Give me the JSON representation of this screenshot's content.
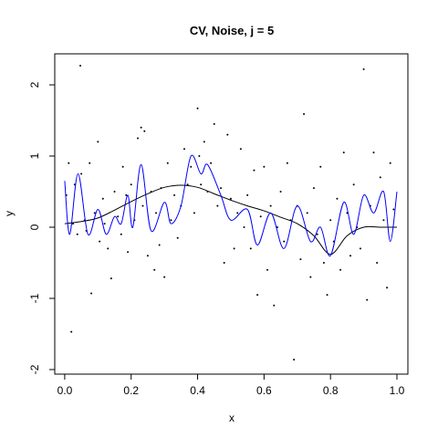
{
  "chart_data": {
    "type": "scatter",
    "title": "CV, Noise, j = 5",
    "xlabel": "x",
    "ylabel": "y",
    "xlim": [
      -0.03,
      1.033
    ],
    "ylim": [
      -2.064,
      2.436
    ],
    "xticks": [
      {
        "value": 0,
        "label": "0.0"
      },
      {
        "value": 0.2,
        "label": "0.2"
      },
      {
        "value": 0.4,
        "label": "0.4"
      },
      {
        "value": 0.6,
        "label": "0.6"
      },
      {
        "value": 0.8,
        "label": "0.8"
      },
      {
        "value": 1,
        "label": "1.0"
      }
    ],
    "yticks": [
      -2,
      -1,
      0,
      1,
      2
    ],
    "points": {
      "color": "#000000",
      "x": [
        0.005,
        0.012,
        0.02,
        0.025,
        0.03,
        0.038,
        0.047,
        0.05,
        0.06,
        0.065,
        0.075,
        0.08,
        0.09,
        0.1,
        0.105,
        0.115,
        0.12,
        0.13,
        0.14,
        0.15,
        0.16,
        0.17,
        0.175,
        0.185,
        0.19,
        0.2,
        0.21,
        0.22,
        0.23,
        0.235,
        0.24,
        0.25,
        0.26,
        0.27,
        0.275,
        0.285,
        0.29,
        0.3,
        0.31,
        0.32,
        0.33,
        0.34,
        0.35,
        0.36,
        0.37,
        0.38,
        0.39,
        0.4,
        0.405,
        0.41,
        0.42,
        0.43,
        0.44,
        0.45,
        0.46,
        0.47,
        0.48,
        0.49,
        0.5,
        0.51,
        0.52,
        0.53,
        0.54,
        0.55,
        0.56,
        0.57,
        0.58,
        0.59,
        0.6,
        0.61,
        0.62,
        0.63,
        0.64,
        0.65,
        0.66,
        0.67,
        0.68,
        0.69,
        0.7,
        0.71,
        0.72,
        0.73,
        0.74,
        0.75,
        0.76,
        0.77,
        0.78,
        0.79,
        0.8,
        0.81,
        0.82,
        0.83,
        0.84,
        0.85,
        0.86,
        0.87,
        0.88,
        0.89,
        0.9,
        0.91,
        0.92,
        0.93,
        0.94,
        0.95,
        0.96,
        0.97,
        0.98,
        0.99
      ],
      "y": [
        0.45,
        0.9,
        -1.47,
        0.05,
        0.6,
        -0.1,
        2.27,
        0.75,
        0.1,
        -0.05,
        0.9,
        -0.93,
        0.2,
        1.2,
        -0.2,
        0.4,
        0.05,
        -0.3,
        -0.72,
        0.5,
        0.15,
        -0.1,
        0.85,
        0.45,
        -0.35,
        0.6,
        0.1,
        1.25,
        1.4,
        0.3,
        1.35,
        -0.4,
        0.5,
        -0.6,
        0.2,
        -0.25,
        0.55,
        -0.7,
        0.9,
        0.1,
        0.45,
        -0.15,
        0.3,
        1.1,
        0.6,
        0.85,
        0.2,
        1.67,
        1.0,
        0.6,
        1.2,
        0.5,
        0.9,
        1.45,
        0.3,
        0.55,
        -0.5,
        1.3,
        0.4,
        -0.3,
        0.2,
        1.1,
        0.0,
        0.45,
        -0.3,
        0.8,
        -0.95,
        0.15,
        0.85,
        -0.6,
        0.3,
        -1.1,
        0.0,
        0.5,
        -0.2,
        0.9,
        0.1,
        -1.86,
        0.3,
        -0.45,
        1.59,
        0.2,
        -0.7,
        0.55,
        -0.1,
        0.85,
        -0.5,
        -0.95,
        0.1,
        -0.2,
        0.4,
        -0.6,
        1.05,
        0.2,
        -0.4,
        0.6,
        0.0,
        -0.3,
        2.22,
        -1.02,
        0.3,
        1.05,
        -0.5,
        0.7,
        0.1,
        -0.85,
        0.9,
        0.25
      ]
    },
    "lines": [
      {
        "color": "#000000",
        "x": [
          0,
          0.05,
          0.1,
          0.15,
          0.2,
          0.25,
          0.3,
          0.35,
          0.4,
          0.45,
          0.5,
          0.55,
          0.6,
          0.65,
          0.7,
          0.75,
          0.8,
          0.85,
          0.9,
          0.95,
          1
        ],
        "y": [
          0.05,
          0.08,
          0.13,
          0.24,
          0.36,
          0.47,
          0.56,
          0.59,
          0.56,
          0.47,
          0.38,
          0.3,
          0.23,
          0.14,
          0.05,
          -0.12,
          -0.38,
          -0.12,
          0.0,
          0.0,
          0.0
        ]
      },
      {
        "color": "#0000ff",
        "x": [
          0,
          0.015,
          0.04,
          0.07,
          0.1,
          0.125,
          0.15,
          0.17,
          0.19,
          0.205,
          0.23,
          0.26,
          0.3,
          0.32,
          0.35,
          0.38,
          0.41,
          0.43,
          0.47,
          0.5,
          0.55,
          0.58,
          0.62,
          0.66,
          0.7,
          0.74,
          0.77,
          0.8,
          0.84,
          0.87,
          0.9,
          0.93,
          0.96,
          0.98,
          1
        ],
        "y": [
          0.65,
          -0.1,
          0.75,
          -0.1,
          0.25,
          -0.1,
          0.15,
          0.05,
          0.45,
          0.0,
          0.88,
          -0.05,
          0.35,
          0.05,
          0.3,
          1.0,
          0.75,
          0.88,
          0.45,
          0.1,
          0.25,
          -0.25,
          0.2,
          -0.3,
          0.3,
          -0.2,
          0.0,
          -0.4,
          0.35,
          -0.1,
          0.45,
          0.2,
          0.5,
          -0.2,
          0.5
        ]
      }
    ]
  }
}
